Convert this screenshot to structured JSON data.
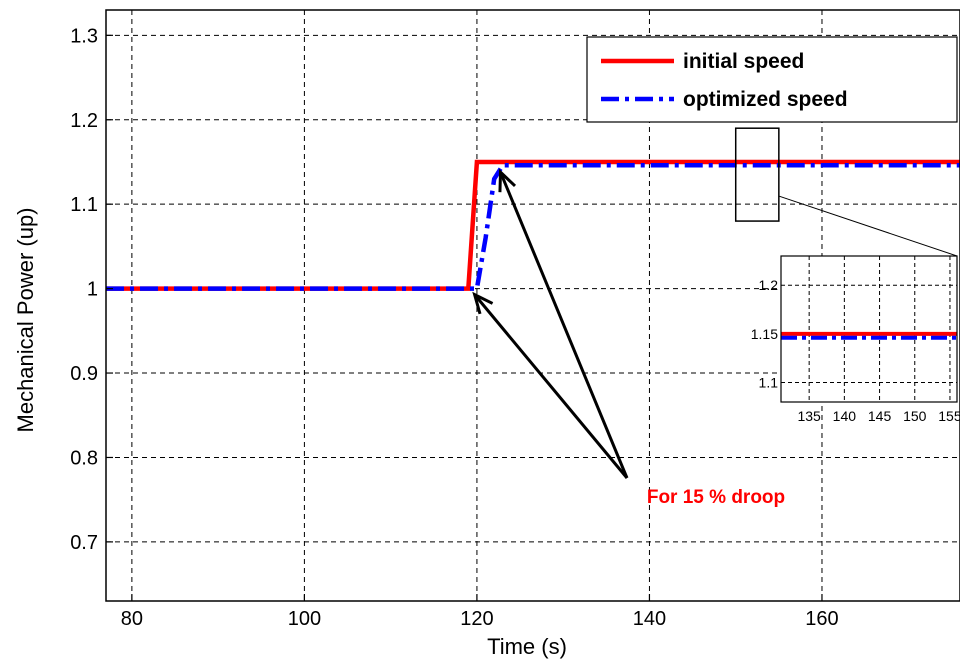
{
  "chart_data": {
    "type": "line",
    "title": "",
    "xlabel": "Time (s)",
    "ylabel": "Mechanical Power (up)",
    "xlim": [
      77,
      176
    ],
    "ylim": [
      0.63,
      1.33
    ],
    "xticks": [
      80,
      100,
      120,
      140,
      160
    ],
    "yticks": [
      0.7,
      0.8,
      0.9,
      1,
      1.1,
      1.2,
      1.3
    ],
    "xtick_labels": [
      "80",
      "100",
      "120",
      "140",
      "160"
    ],
    "ytick_labels": [
      "0.7",
      "0.8",
      "0.9",
      "1",
      "1.1",
      "1.2",
      "1.3"
    ],
    "grid": true,
    "legend_position": "top-right",
    "series": [
      {
        "name": "initial speed",
        "color": "#ff0000",
        "style": "solid",
        "x": [
          77,
          119,
          120,
          176
        ],
        "y": [
          1.0,
          1.0,
          1.15,
          1.15
        ]
      },
      {
        "name": "optimized speed",
        "color": "#0000ff",
        "style": "dashdot",
        "x": [
          77,
          120,
          121,
          122,
          123,
          176
        ],
        "y": [
          1.0,
          1.0,
          1.06,
          1.13,
          1.146,
          1.146
        ]
      }
    ],
    "annotation": {
      "text": "For 15 % droop",
      "color": "#ff0000",
      "points_to": [
        [
          119.5,
          1.0
        ],
        [
          122.5,
          1.145
        ]
      ]
    },
    "zoom_box": {
      "xlim": [
        150,
        155
      ],
      "ylim": [
        1.08,
        1.19
      ]
    },
    "inset": {
      "xlim": [
        131,
        156
      ],
      "ylim": [
        1.08,
        1.23
      ],
      "xticks": [
        135,
        140,
        145,
        150,
        155
      ],
      "yticks": [
        1.1,
        1.15,
        1.2
      ],
      "xtick_labels": [
        "135",
        "140",
        "145",
        "150",
        "155"
      ],
      "ytick_labels": [
        "1.1",
        "1.15",
        "1.2"
      ],
      "series_y": [
        1.15,
        1.146
      ]
    }
  }
}
